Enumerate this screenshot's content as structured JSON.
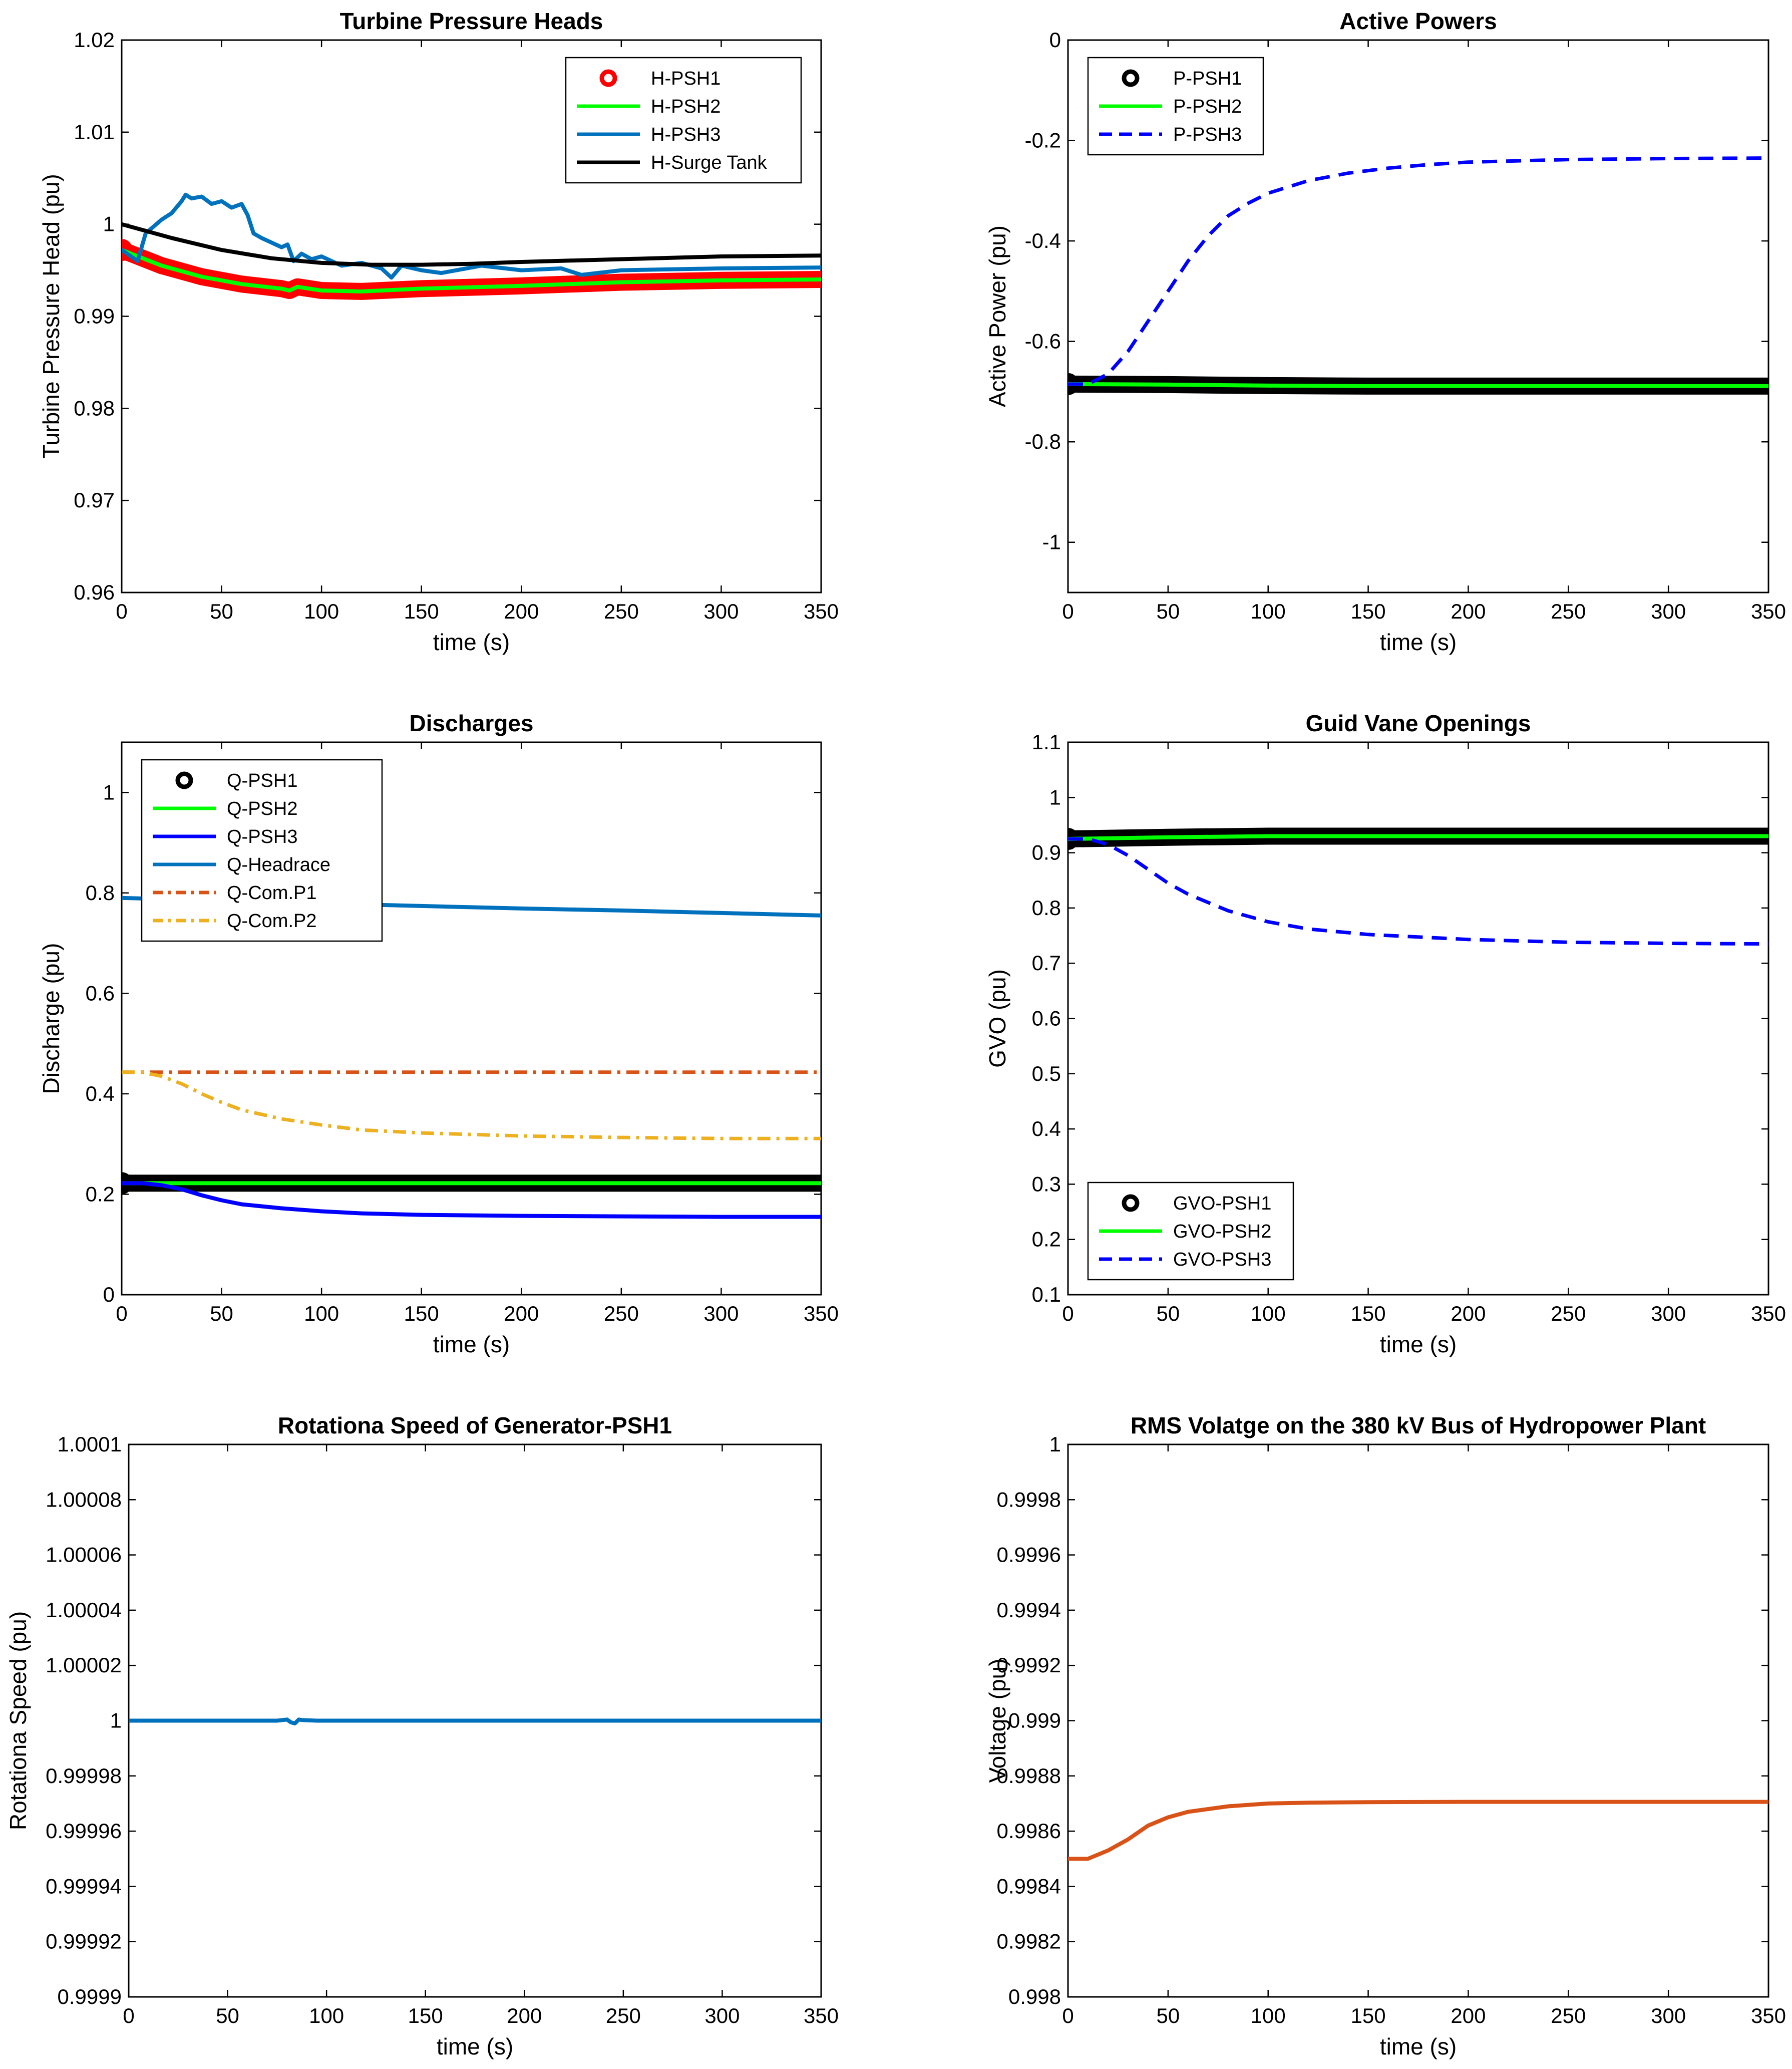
{
  "chart_data": [
    {
      "type": "line",
      "title": "Turbine Pressure Heads",
      "xlabel": "time (s)",
      "ylabel": "Turbine Pressure Head (pu)",
      "xlim": [
        0,
        350
      ],
      "ylim": [
        0.96,
        1.02
      ],
      "xticks": [
        0,
        50,
        100,
        150,
        200,
        250,
        300,
        350
      ],
      "yticks": [
        0.96,
        0.97,
        0.98,
        0.99,
        1,
        1.01,
        1.02
      ],
      "legend_location": "top-right",
      "series": [
        {
          "name": "H-PSH1",
          "color": "#ff0000",
          "style": "circles",
          "x": [
            0,
            20,
            40,
            60,
            80,
            84,
            88,
            100,
            120,
            150,
            200,
            250,
            300,
            350
          ],
          "y": [
            0.9972,
            0.9955,
            0.9943,
            0.9935,
            0.993,
            0.9928,
            0.9932,
            0.9928,
            0.9927,
            0.993,
            0.9933,
            0.9937,
            0.9939,
            0.994
          ]
        },
        {
          "name": "H-PSH2",
          "color": "#00ff00",
          "style": "solid",
          "x": [
            0,
            20,
            40,
            60,
            80,
            84,
            88,
            100,
            120,
            150,
            200,
            250,
            300,
            350
          ],
          "y": [
            0.9972,
            0.9955,
            0.9943,
            0.9935,
            0.993,
            0.9928,
            0.9932,
            0.9928,
            0.9927,
            0.993,
            0.9933,
            0.9937,
            0.9939,
            0.994
          ]
        },
        {
          "name": "H-PSH3",
          "color": "#0072bd",
          "style": "solid",
          "x": [
            0,
            8,
            12,
            20,
            25,
            30,
            32,
            35,
            40,
            45,
            50,
            55,
            60,
            63,
            66,
            70,
            75,
            80,
            83,
            86,
            90,
            95,
            100,
            110,
            120,
            130,
            135,
            140,
            150,
            160,
            180,
            200,
            220,
            230,
            250,
            300,
            350
          ],
          "y": [
            0.9972,
            0.996,
            0.999,
            1.0005,
            1.0012,
            1.0025,
            1.0032,
            1.0028,
            1.003,
            1.0022,
            1.0025,
            1.0018,
            1.0022,
            1.001,
            0.999,
            0.9985,
            0.998,
            0.9975,
            0.9978,
            0.996,
            0.9968,
            0.9962,
            0.9965,
            0.9955,
            0.9958,
            0.9952,
            0.9942,
            0.9955,
            0.995,
            0.9947,
            0.9955,
            0.995,
            0.9952,
            0.9945,
            0.995,
            0.9952,
            0.9953
          ]
        },
        {
          "name": "H-Surge Tank",
          "color": "#000000",
          "style": "solid",
          "x": [
            0,
            25,
            50,
            75,
            100,
            125,
            150,
            175,
            200,
            250,
            300,
            350
          ],
          "y": [
            1.0,
            0.9985,
            0.9972,
            0.9963,
            0.9958,
            0.9956,
            0.9956,
            0.9957,
            0.9959,
            0.9962,
            0.9965,
            0.9966
          ]
        }
      ]
    },
    {
      "type": "line",
      "title": "Active Powers",
      "xlabel": "time (s)",
      "ylabel": "Active Power (pu)",
      "xlim": [
        0,
        350
      ],
      "ylim": [
        -1.1,
        0
      ],
      "xticks": [
        0,
        50,
        100,
        150,
        200,
        250,
        300,
        350
      ],
      "yticks": [
        -1,
        -0.8,
        -0.6,
        -0.4,
        -0.2,
        0
      ],
      "legend_location": "top-left",
      "series": [
        {
          "name": "P-PSH1",
          "color": "#000000",
          "style": "circles",
          "x": [
            0,
            50,
            100,
            150,
            200,
            250,
            300,
            350
          ],
          "y": [
            -0.685,
            -0.686,
            -0.688,
            -0.689,
            -0.689,
            -0.689,
            -0.689,
            -0.689
          ]
        },
        {
          "name": "P-PSH2",
          "color": "#00ff00",
          "style": "solid",
          "x": [
            0,
            50,
            100,
            150,
            200,
            250,
            300,
            350
          ],
          "y": [
            -0.685,
            -0.686,
            -0.688,
            -0.689,
            -0.689,
            -0.689,
            -0.689,
            -0.689
          ]
        },
        {
          "name": "P-PSH3",
          "color": "#0000ff",
          "style": "dashed",
          "x": [
            0,
            10,
            20,
            30,
            40,
            50,
            60,
            70,
            80,
            90,
            100,
            120,
            140,
            160,
            180,
            200,
            250,
            300,
            350
          ],
          "y": [
            -0.685,
            -0.685,
            -0.665,
            -0.62,
            -0.56,
            -0.5,
            -0.44,
            -0.39,
            -0.35,
            -0.325,
            -0.305,
            -0.28,
            -0.265,
            -0.255,
            -0.248,
            -0.243,
            -0.238,
            -0.236,
            -0.235
          ]
        }
      ]
    },
    {
      "type": "line",
      "title": "Discharges",
      "xlabel": "time (s)",
      "ylabel": "Discharge (pu)",
      "xlim": [
        0,
        350
      ],
      "ylim": [
        0,
        1.1
      ],
      "xticks": [
        0,
        50,
        100,
        150,
        200,
        250,
        300,
        350
      ],
      "yticks": [
        0,
        0.2,
        0.4,
        0.6,
        0.8,
        1
      ],
      "legend_location": "top-left",
      "series": [
        {
          "name": "Q-PSH1",
          "color": "#000000",
          "style": "circles",
          "x": [
            0,
            350
          ],
          "y": [
            0.222,
            0.222
          ]
        },
        {
          "name": "Q-PSH2",
          "color": "#00ff00",
          "style": "solid",
          "x": [
            0,
            350
          ],
          "y": [
            0.222,
            0.222
          ]
        },
        {
          "name": "Q-PSH3",
          "color": "#0000ff",
          "style": "solid",
          "x": [
            0,
            10,
            20,
            30,
            40,
            50,
            60,
            80,
            100,
            120,
            150,
            200,
            250,
            300,
            350
          ],
          "y": [
            0.222,
            0.222,
            0.218,
            0.21,
            0.198,
            0.188,
            0.18,
            0.172,
            0.166,
            0.162,
            0.159,
            0.157,
            0.156,
            0.155,
            0.155
          ]
        },
        {
          "name": "Q-Headrace",
          "color": "#0072bd",
          "style": "solid",
          "x": [
            0,
            50,
            100,
            150,
            200,
            250,
            300,
            350
          ],
          "y": [
            0.79,
            0.785,
            0.779,
            0.774,
            0.769,
            0.765,
            0.76,
            0.755
          ]
        },
        {
          "name": "Q-Com.P1",
          "color": "#d95319",
          "style": "dashdot",
          "x": [
            0,
            350
          ],
          "y": [
            0.443,
            0.443
          ]
        },
        {
          "name": "Q-Com.P2",
          "color": "#edb120",
          "style": "dashdot",
          "x": [
            0,
            10,
            20,
            30,
            40,
            50,
            60,
            80,
            100,
            120,
            150,
            200,
            250,
            300,
            350
          ],
          "y": [
            0.443,
            0.443,
            0.435,
            0.42,
            0.4,
            0.383,
            0.368,
            0.35,
            0.338,
            0.328,
            0.322,
            0.316,
            0.313,
            0.311,
            0.311
          ]
        }
      ]
    },
    {
      "type": "line",
      "title": "Guid Vane Openings",
      "xlabel": "time (s)",
      "ylabel": "GVO (pu)",
      "xlim": [
        0,
        350
      ],
      "ylim": [
        0.1,
        1.1
      ],
      "xticks": [
        0,
        50,
        100,
        150,
        200,
        250,
        300,
        350
      ],
      "yticks": [
        0.1,
        0.2,
        0.3,
        0.4,
        0.5,
        0.6,
        0.7,
        0.8,
        0.9,
        1,
        1.1
      ],
      "legend_location": "bottom-left",
      "series": [
        {
          "name": "GVO-PSH1",
          "color": "#000000",
          "style": "circles",
          "x": [
            0,
            50,
            100,
            200,
            350
          ],
          "y": [
            0.925,
            0.928,
            0.93,
            0.93,
            0.93
          ]
        },
        {
          "name": "GVO-PSH2",
          "color": "#00ff00",
          "style": "solid",
          "x": [
            0,
            50,
            100,
            200,
            350
          ],
          "y": [
            0.925,
            0.928,
            0.93,
            0.93,
            0.93
          ]
        },
        {
          "name": "GVO-PSH3",
          "color": "#0000ff",
          "style": "dashed",
          "x": [
            0,
            10,
            20,
            30,
            40,
            50,
            60,
            80,
            100,
            120,
            150,
            200,
            250,
            300,
            350
          ],
          "y": [
            0.925,
            0.925,
            0.915,
            0.895,
            0.87,
            0.845,
            0.825,
            0.795,
            0.775,
            0.762,
            0.752,
            0.743,
            0.738,
            0.736,
            0.735
          ]
        }
      ]
    },
    {
      "type": "line",
      "title": "Rotationa Speed of Generator-PSH1",
      "xlabel": "time (s)",
      "ylabel": "Rotationa Speed (pu)",
      "xlim": [
        0,
        350
      ],
      "ylim": [
        0.9999,
        1.0001
      ],
      "xticks": [
        0,
        50,
        100,
        150,
        200,
        250,
        300,
        350
      ],
      "yticks": [
        0.9999,
        0.99992,
        0.99994,
        0.99996,
        0.99998,
        1,
        1.00002,
        1.00004,
        1.00006,
        1.00008,
        1.0001
      ],
      "ytick_labels": [
        "0.9999",
        "0.99992",
        "0.99994",
        "0.99996",
        "0.99998",
        "1",
        "1.00002",
        "1.00004",
        "1.00006",
        "1.00008",
        "1.0001"
      ],
      "legend_location": "none",
      "series": [
        {
          "name": "",
          "color": "#0072bd",
          "style": "solid",
          "x": [
            0,
            75,
            80,
            82,
            84,
            86,
            88,
            95,
            350
          ],
          "y": [
            1.0,
            1.0,
            1.0000004,
            0.9999994,
            0.999999,
            1.0000004,
            1.0000002,
            1.0,
            1.0
          ]
        }
      ]
    },
    {
      "type": "line",
      "title": "RMS Volatge on the 380 kV Bus of Hydropower Plant",
      "xlabel": "time (s)",
      "ylabel": "Voltage (pu)",
      "xlim": [
        0,
        350
      ],
      "ylim": [
        0.998,
        1.0
      ],
      "xticks": [
        0,
        50,
        100,
        150,
        200,
        250,
        300,
        350
      ],
      "yticks": [
        0.998,
        0.9982,
        0.9984,
        0.9986,
        0.9988,
        0.999,
        0.9992,
        0.9994,
        0.9996,
        0.9998,
        1
      ],
      "ytick_labels": [
        "0.998",
        "0.9982",
        "0.9984",
        "0.9986",
        "0.9988",
        "0.999",
        "0.9992",
        "0.9994",
        "0.9996",
        "0.9998",
        "1"
      ],
      "legend_location": "none",
      "series": [
        {
          "name": "",
          "color": "#d95319",
          "style": "solid",
          "x": [
            0,
            10,
            20,
            30,
            40,
            50,
            60,
            70,
            80,
            100,
            120,
            150,
            200,
            250,
            300,
            350
          ],
          "y": [
            0.9985,
            0.9985,
            0.99853,
            0.99857,
            0.99862,
            0.99865,
            0.99867,
            0.99868,
            0.99869,
            0.9987,
            0.998703,
            0.998705,
            0.998706,
            0.998706,
            0.998706,
            0.998706
          ]
        }
      ]
    }
  ]
}
